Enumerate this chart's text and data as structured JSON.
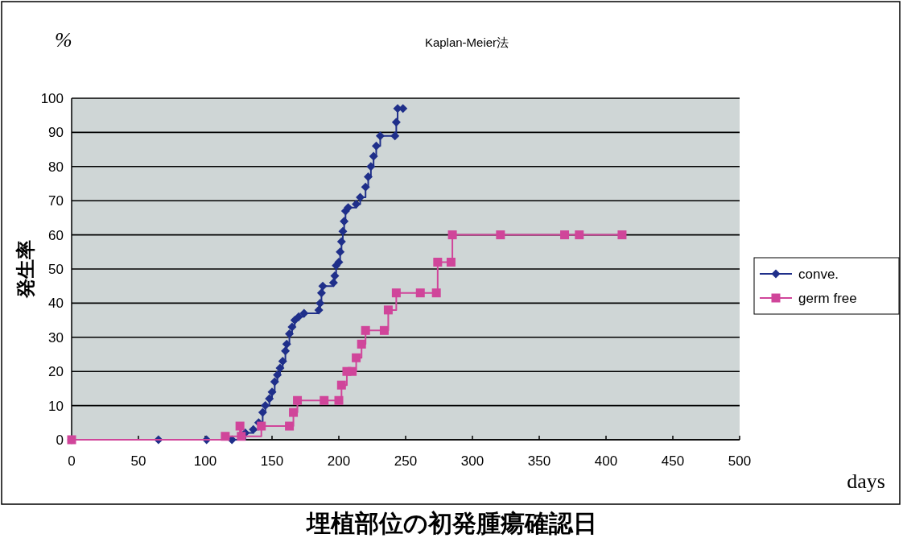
{
  "chart_data": {
    "type": "step",
    "title": "Kaplan-Meier法",
    "xlabel": "days",
    "ylabel": "発生率",
    "annotations": [
      "%",
      "埋植部位の初発腫瘍確認日"
    ],
    "xlim": [
      0,
      500
    ],
    "xticks": [
      0,
      50,
      100,
      150,
      200,
      250,
      300,
      350,
      400,
      450,
      500
    ],
    "ylim": [
      0,
      100
    ],
    "yticks": [
      0,
      10,
      20,
      30,
      40,
      50,
      60,
      70,
      80,
      90,
      100
    ],
    "grid": "y",
    "legend": "right",
    "line_style": "solid",
    "series": [
      {
        "name": "conve.",
        "color": "#1f2f8a",
        "marker": "diamond",
        "x": [
          0,
          65,
          101,
          120,
          130,
          136,
          140,
          143,
          145,
          148,
          150,
          152,
          154,
          156,
          158,
          160,
          161,
          163,
          165,
          167,
          170,
          174,
          185,
          186,
          187,
          188,
          196,
          197,
          198,
          200,
          201,
          202,
          203,
          204,
          205,
          207,
          213,
          216,
          220,
          222,
          224,
          226,
          228,
          231,
          242,
          243,
          244,
          248
        ],
        "values": [
          0,
          0,
          0,
          0,
          2,
          3,
          5,
          8,
          10,
          12,
          14,
          17,
          19,
          21,
          23,
          26,
          28,
          31,
          33,
          35,
          36,
          37,
          38,
          40,
          43,
          45,
          46,
          48,
          51,
          52,
          55,
          58,
          61,
          64,
          67,
          68,
          69,
          71,
          74,
          77,
          80,
          83,
          86,
          89,
          89,
          93,
          97,
          97
        ]
      },
      {
        "name": "germ free",
        "color": "#d0459a",
        "marker": "square",
        "x": [
          0,
          115,
          126,
          127,
          142,
          163,
          166,
          169,
          189,
          200,
          202,
          206,
          210,
          213,
          217,
          220,
          234,
          237,
          243,
          261,
          273,
          274,
          284,
          285,
          321,
          369,
          380,
          412
        ],
        "values": [
          0,
          1,
          4,
          1,
          4,
          4,
          8,
          11.5,
          11.5,
          11.5,
          16,
          20,
          20,
          24,
          28,
          32,
          32,
          38,
          43,
          43,
          43,
          52,
          52,
          60,
          60,
          60,
          60,
          60
        ]
      }
    ]
  }
}
